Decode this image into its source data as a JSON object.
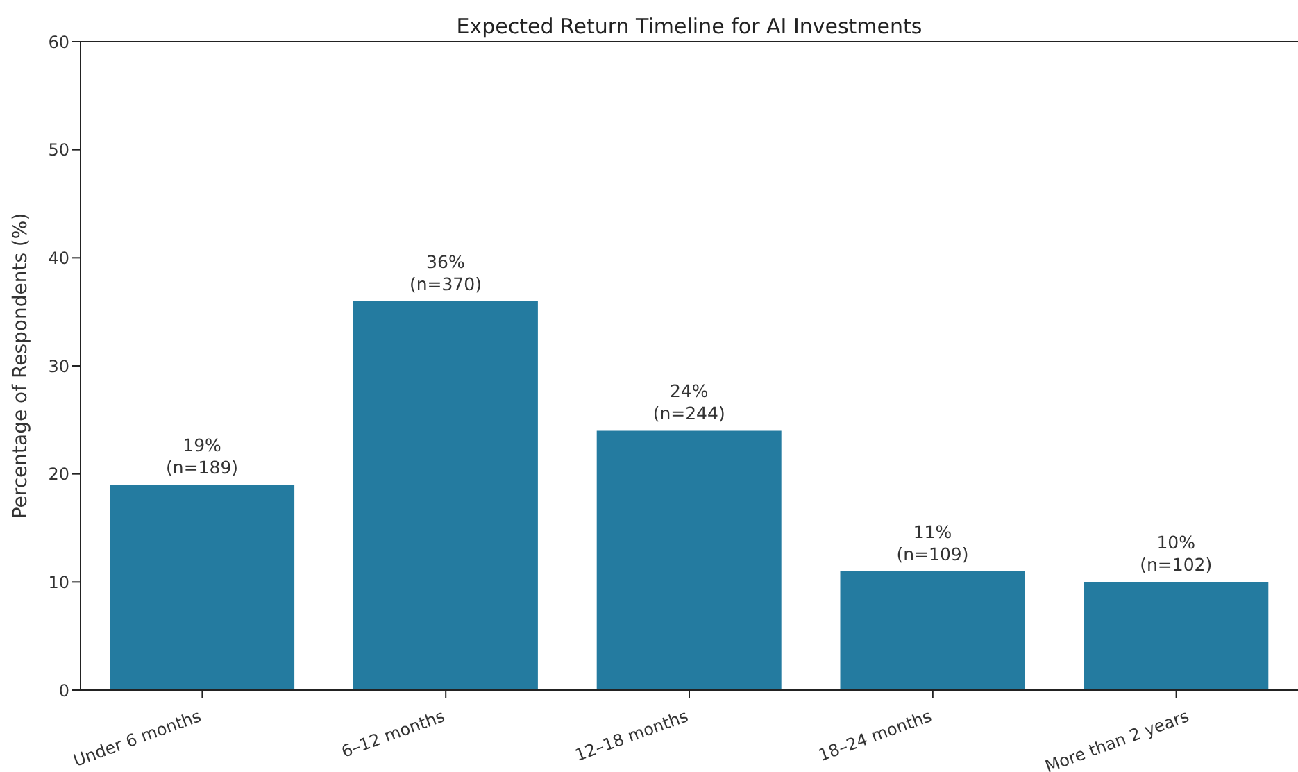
{
  "chart_data": {
    "type": "bar",
    "title": "Expected Return Timeline for AI Investments",
    "ylabel": "Percentage of Respondents (%)",
    "categories": [
      "Under 6 months",
      "6–12 months",
      "12–18 months",
      "18–24 months",
      "More than 2 years"
    ],
    "values": [
      19,
      36,
      24,
      11,
      10
    ],
    "color": "#247ba0",
    "value_labels": [
      "19%\n(n=189)",
      "36%\n(n=370)",
      "24%\n(n=244)",
      "11%\n(n=109)",
      "10%\n(n=102)"
    ],
    "ylim": [
      0,
      60
    ],
    "yticks": [
      0,
      10,
      20,
      30,
      40,
      50,
      60
    ],
    "grid": false,
    "legend": false
  }
}
